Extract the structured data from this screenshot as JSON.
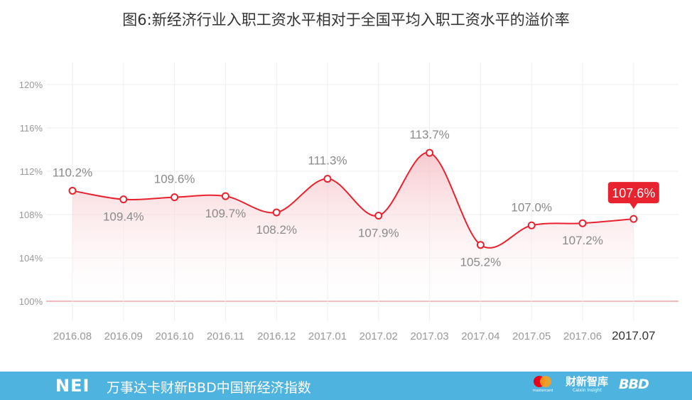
{
  "title": "图6:新经济行业入职工资水平相对于全国平均入职工资水平的溢价率",
  "footer": {
    "logo_text": "NEI",
    "index_name": "万事达卡财新BBD中国新经济指数",
    "mastercard_caption": "mastercard",
    "caixin_logo": "财新智库",
    "caixin_caption": "Caixin Insight",
    "bbd_logo": "BBD",
    "bar_color": "#4fb3e0"
  },
  "chart_data": {
    "type": "area",
    "title": "图6:新经济行业入职工资水平相对于全国平均入职工资水平的溢价率",
    "categories": [
      "2016.08",
      "2016.09",
      "2016.10",
      "2016.11",
      "2016.12",
      "2017.01",
      "2017.02",
      "2017.03",
      "2017.04",
      "2017.05",
      "2017.06",
      "2017.07"
    ],
    "values": [
      110.2,
      109.4,
      109.6,
      109.7,
      108.2,
      111.3,
      107.9,
      113.7,
      105.2,
      107.0,
      107.2,
      107.6
    ],
    "labels": [
      "110.2%",
      "109.4%",
      "109.6%",
      "109.7%",
      "108.2%",
      "111.3%",
      "107.9%",
      "113.7%",
      "105.2%",
      "107.0%",
      "107.2%",
      "107.6%"
    ],
    "label_position": [
      "above",
      "below",
      "above",
      "below",
      "below",
      "above",
      "below",
      "above",
      "below",
      "above",
      "below",
      "above"
    ],
    "highlight_index": 11,
    "yticks": [
      100,
      104,
      108,
      112,
      116,
      120
    ],
    "ytick_labels": [
      "100%",
      "104%",
      "108%",
      "112%",
      "116%",
      "120%"
    ],
    "ylim": [
      98,
      122
    ],
    "xlabel": "",
    "ylabel": "",
    "grid": true,
    "colors": {
      "line": "#e8222e",
      "fill_top": "#f6c1c6",
      "baseline": "#e8737c",
      "grid": "#eeeeee",
      "tick_text": "#999999",
      "label_text": "#8a8a8a",
      "highlight_bg": "#e8222e"
    }
  }
}
